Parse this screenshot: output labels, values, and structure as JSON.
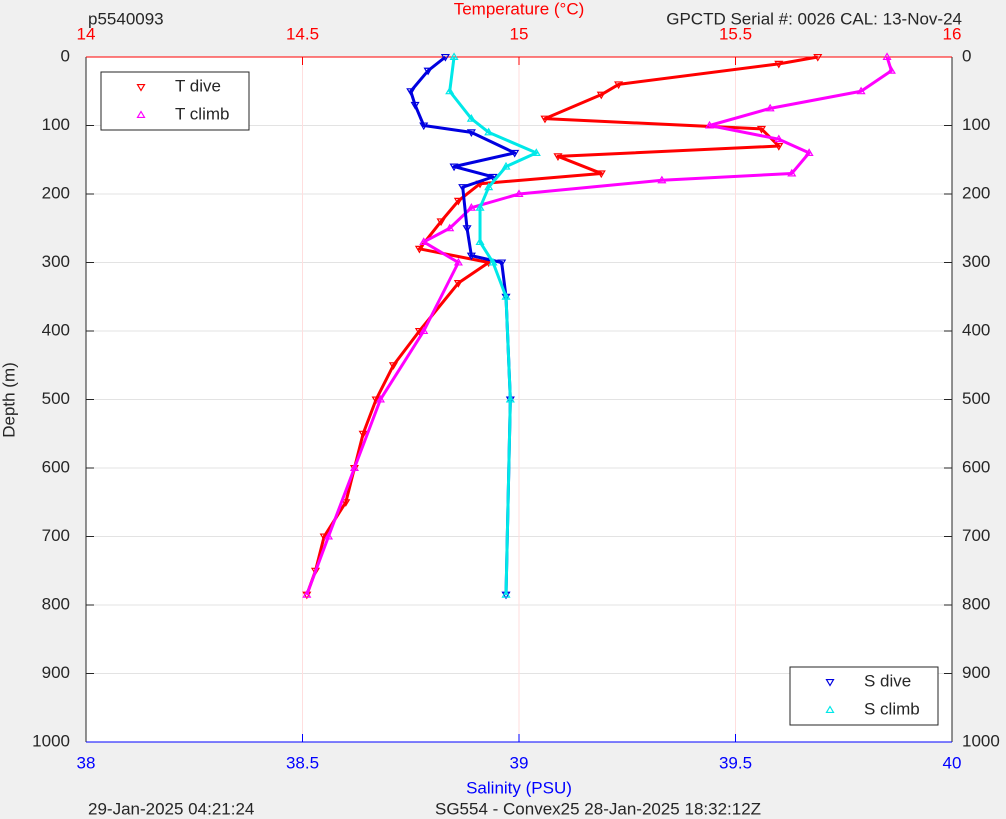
{
  "chart_data": {
    "type": "scatter",
    "title_left": "p5540093",
    "title": "Temperature (°C)",
    "title_right": "GPCTD Serial #: 0026 CAL: 13-Nov-24",
    "ylabel": "Depth (m)",
    "x2label": "Salinity (PSU)",
    "footer_left": "29-Jan-2025 04:21:24",
    "footer_center": "SG554 - Convex25 28-Jan-2025 18:32:12Z",
    "ylim": [
      0,
      1000
    ],
    "y_reversed": true,
    "yticks": [
      0,
      100,
      200,
      300,
      400,
      500,
      600,
      700,
      800,
      900,
      1000
    ],
    "xlim": [
      14,
      16
    ],
    "xticks": [
      14,
      14.5,
      15,
      15.5,
      16
    ],
    "xcolor": "#ff0000",
    "x2lim": [
      38,
      40
    ],
    "x2ticks": [
      38,
      38.5,
      39,
      39.5,
      40
    ],
    "x2color": "#0000ff",
    "grid": true,
    "series": [
      {
        "name": "T dive",
        "color": "#ff0000",
        "marker": "v",
        "legend": "upper left",
        "x": [
          15.69,
          15.6,
          15.23,
          15.19,
          15.06,
          15.56,
          15.6,
          15.09,
          15.19,
          14.91,
          14.86,
          14.82,
          14.77,
          14.93,
          14.86,
          14.77,
          14.71,
          14.67,
          14.64,
          14.62,
          14.6,
          14.55,
          14.53,
          14.51
        ],
        "y": [
          0,
          10,
          40,
          55,
          90,
          105,
          130,
          145,
          170,
          185,
          210,
          240,
          280,
          300,
          330,
          400,
          450,
          500,
          550,
          600,
          650,
          700,
          750,
          785
        ]
      },
      {
        "name": "T climb",
        "color": "#ff00ff",
        "marker": "^",
        "legend": "upper left",
        "x": [
          15.85,
          15.86,
          15.79,
          15.58,
          15.44,
          15.6,
          15.67,
          15.63,
          15.33,
          15.0,
          14.89,
          14.84,
          14.78,
          14.86,
          14.78,
          14.68,
          14.62,
          14.56,
          14.51
        ],
        "y": [
          0,
          20,
          50,
          75,
          100,
          120,
          140,
          170,
          180,
          200,
          220,
          250,
          270,
          300,
          400,
          500,
          600,
          700,
          785
        ]
      },
      {
        "name": "S dive",
        "color": "#0000e0",
        "marker": "v",
        "legend": "lower right",
        "axis": "x2",
        "x": [
          38.83,
          38.79,
          38.75,
          38.76,
          38.78,
          38.89,
          38.99,
          38.85,
          38.94,
          38.87,
          38.88,
          38.89,
          38.96,
          38.97,
          38.98,
          38.97
        ],
        "y": [
          0,
          20,
          50,
          70,
          100,
          110,
          140,
          160,
          175,
          190,
          250,
          290,
          300,
          350,
          500,
          785
        ]
      },
      {
        "name": "S climb",
        "color": "#00e8e8",
        "marker": "^",
        "legend": "lower right",
        "axis": "x2",
        "x": [
          38.85,
          38.84,
          38.89,
          38.93,
          39.04,
          38.97,
          38.93,
          38.91,
          38.91,
          38.94,
          38.97,
          38.98,
          38.97
        ],
        "y": [
          0,
          50,
          90,
          110,
          140,
          160,
          190,
          220,
          270,
          300,
          350,
          500,
          785
        ]
      }
    ]
  }
}
